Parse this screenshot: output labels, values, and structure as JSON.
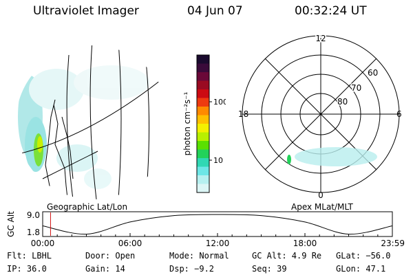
{
  "header": {
    "instrument": "Ultraviolet Imager",
    "date": "04 Jun 07",
    "time": "00:32:24 UT"
  },
  "colorbar": {
    "label": "photon cm⁻²s⁻¹",
    "ticks": [
      "100",
      "10"
    ],
    "colors": [
      "#1a0a2e",
      "#3a0a3a",
      "#6a0838",
      "#9a0a22",
      "#cc0a12",
      "#ee3a10",
      "#ff8a00",
      "#ffc000",
      "#f4f000",
      "#b8f000",
      "#5ae000",
      "#22d25a",
      "#30d8b4",
      "#6de6e6",
      "#b6f0f0",
      "#dcf6f6"
    ]
  },
  "geo_panel": {
    "label": "Geographic Lat/Lon"
  },
  "polar_panel": {
    "label": "Apex MLat/MLT",
    "hour_labels": {
      "top": "12",
      "left": "18",
      "right": "6",
      "bottom": "0"
    },
    "lat_labels": [
      "60",
      "70",
      "80"
    ]
  },
  "chart_data": {
    "type": "line",
    "ylabel": "GC Alt",
    "yticks": [
      "9.0",
      "1.8"
    ],
    "ylim": [
      1.8,
      9.0
    ],
    "xticks": [
      "00:00",
      "06:00",
      "12:00",
      "18:00",
      "23:59"
    ],
    "x_hours": [
      0,
      3,
      6,
      9,
      12,
      15,
      18,
      21,
      24
    ],
    "y_alt": [
      4.9,
      1.9,
      6.3,
      8.6,
      9.0,
      8.6,
      6.3,
      1.9,
      4.9
    ],
    "marker_hour": 0.54
  },
  "info": {
    "flt": "Flt: LBHL",
    "door": "Door: Open",
    "mode": "Mode: Normal",
    "gcalt": "GC Alt: 4.9 Re",
    "glat": "GLat: −56.0",
    "ip": "IP: 36.0",
    "gain": "Gain: 14",
    "dsp": "Dsp:  −9.2",
    "seq": "Seq: 39",
    "glon": "GLon:  47.1"
  }
}
